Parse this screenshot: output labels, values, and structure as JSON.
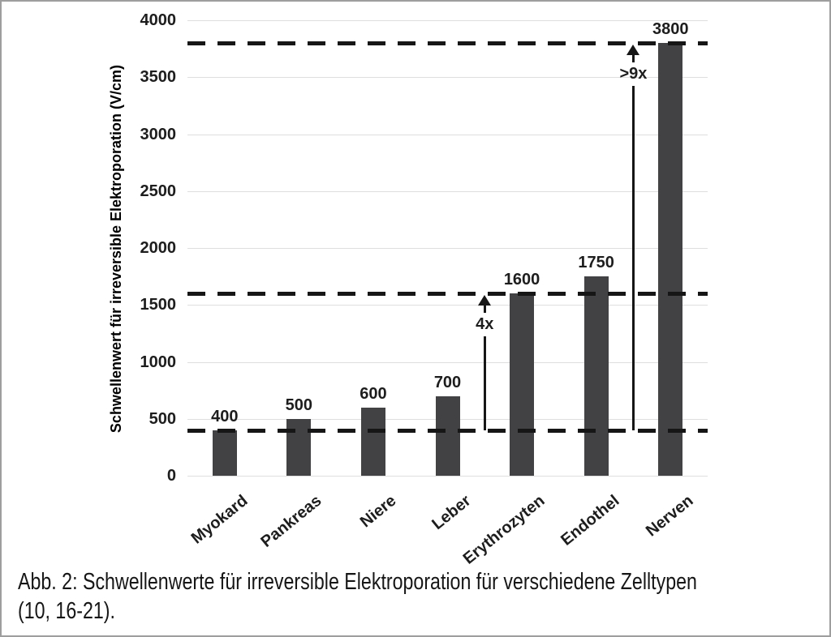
{
  "chart_data": {
    "type": "bar",
    "title": "",
    "xlabel": "",
    "ylabel": "Schwellenwert für irreversible Elektroporation (V/cm)",
    "categories": [
      "Myokard",
      "Pankreas",
      "Niere",
      "Leber",
      "Erythrozyten",
      "Endothel",
      "Nerven"
    ],
    "values": [
      400,
      500,
      600,
      700,
      1600,
      1750,
      3800
    ],
    "bar_value_labels": [
      "400",
      "500",
      "600",
      "700",
      "1600",
      "1750",
      "3800"
    ],
    "ylim": [
      0,
      4000
    ],
    "yticks": [
      0,
      500,
      1000,
      1500,
      2000,
      2500,
      3000,
      3500,
      4000
    ],
    "grid": true,
    "legend": "none",
    "reference_dashed_lines": [
      400,
      1600,
      3800
    ],
    "annotations": [
      {
        "label": "4x",
        "from": 400,
        "to": 1600,
        "between_category_indices": [
          3,
          4
        ]
      },
      {
        "label": ">9x",
        "from": 400,
        "to": 3800,
        "between_category_indices": [
          5,
          6
        ]
      }
    ],
    "colors": {
      "bar": "#424245",
      "dashed_line": "#161616",
      "gridline": "#dedede",
      "text": "#1d1d1d",
      "background": "#ffffff",
      "frame_border": "#9e9e9e"
    }
  },
  "caption": {
    "line1": "Abb. 2: Schwellenwerte für irreversible Elektroporation für verschiedene Zelltypen",
    "line2": "(10, 16-21)."
  }
}
